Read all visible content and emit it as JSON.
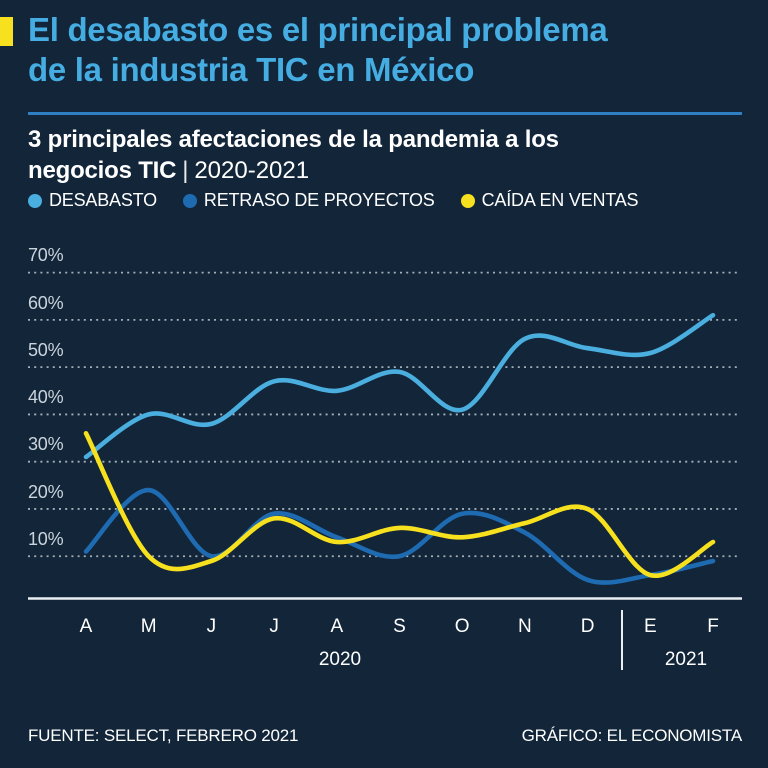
{
  "header": {
    "title_line1": "El desabasto es el principal problema",
    "title_line2": "de la industria TIC en México",
    "subtitle_line1": "3 principales afectaciones de la pandemia a los",
    "subtitle_line2_bold": "negocios TIC",
    "subtitle_separator": "|",
    "subtitle_period": "2020-2021"
  },
  "legend": [
    {
      "label": "DESABASTO",
      "color": "#4AAEDF"
    },
    {
      "label": "RETRASO DE PROYECTOS",
      "color": "#1E6BB2"
    },
    {
      "label": "CAÍDA EN VENTAS",
      "color": "#F7E11E"
    }
  ],
  "chart_data": {
    "type": "line",
    "categories": [
      "A",
      "M",
      "J",
      "J",
      "A",
      "S",
      "O",
      "N",
      "D",
      "E",
      "F"
    ],
    "x_groups": [
      {
        "label": "2020",
        "span": [
          0,
          8
        ]
      },
      {
        "label": "2021",
        "span": [
          9,
          10
        ]
      }
    ],
    "series": [
      {
        "name": "DESABASTO",
        "color": "#4AAEDF",
        "values": [
          31,
          40,
          38,
          47,
          45,
          49,
          41,
          56,
          54,
          53,
          61
        ]
      },
      {
        "name": "RETRASO DE PROYECTOS",
        "color": "#1E6BB2",
        "values": [
          11,
          24,
          10,
          19,
          14,
          10,
          19,
          15,
          5,
          6,
          9
        ]
      },
      {
        "name": "CAÍDA EN VENTAS",
        "color": "#F7E11E",
        "values": [
          36,
          10,
          9,
          18,
          13,
          16,
          14,
          17,
          20,
          6,
          13
        ]
      }
    ],
    "yticks": [
      10,
      20,
      30,
      40,
      50,
      60,
      70
    ],
    "ytick_labels": [
      "70%",
      "60%",
      "50%",
      "40%",
      "30%",
      "20%",
      "10%"
    ],
    "ytick_suffix": "%",
    "ylim": [
      0,
      75
    ],
    "grid": "dotted-horizontal",
    "legend_position": "top",
    "curve": "smooth-spline"
  },
  "footer": {
    "source": "FUENTE: SELECT, FEBRERO 2021",
    "credit": "GRÁFICO: EL ECONOMISTA"
  },
  "colors": {
    "background": "#122539",
    "title": "#45ADE2",
    "divider": "#2F80C2",
    "accent_marker": "#F7E11E",
    "grid": "#C9D2DA",
    "axis": "#E9EEF3",
    "text": "#FFFFFF",
    "ytick_text": "#CBD4DC"
  }
}
